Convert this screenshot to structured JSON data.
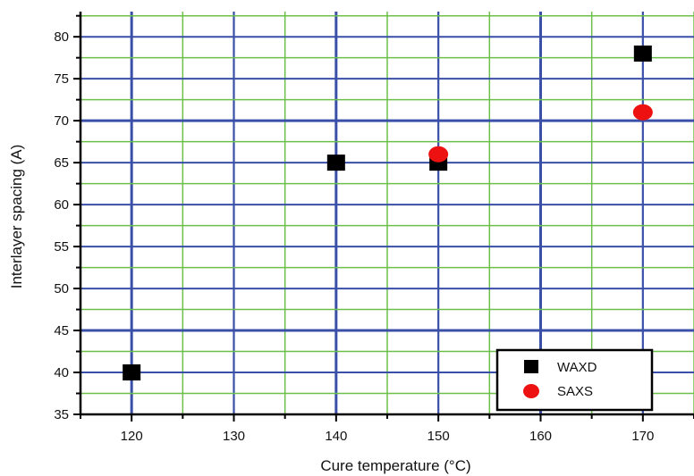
{
  "chart_data": {
    "type": "scatter",
    "title": "",
    "xlabel": "Cure temperature (°C)",
    "ylabel": "Interlayer spacing (A)",
    "xlim": [
      115,
      175
    ],
    "ylim": [
      35,
      83
    ],
    "xticks": [
      120,
      130,
      140,
      150,
      160,
      170
    ],
    "yticks": [
      35,
      40,
      45,
      50,
      55,
      60,
      65,
      70,
      75,
      80
    ],
    "grid": true,
    "grid_colors": {
      "major": "#3a4fa8",
      "minor": "#6cc04a"
    },
    "legend_position": "bottom-right",
    "series": [
      {
        "name": "WAXD",
        "marker": "square",
        "color": "#000000",
        "points": [
          {
            "x": 120,
            "y": 40
          },
          {
            "x": 140,
            "y": 65
          },
          {
            "x": 150,
            "y": 65
          },
          {
            "x": 170,
            "y": 78
          }
        ]
      },
      {
        "name": "SAXS",
        "marker": "circle",
        "color": "#ee1111",
        "points": [
          {
            "x": 150,
            "y": 66
          },
          {
            "x": 170,
            "y": 71
          }
        ]
      }
    ]
  }
}
